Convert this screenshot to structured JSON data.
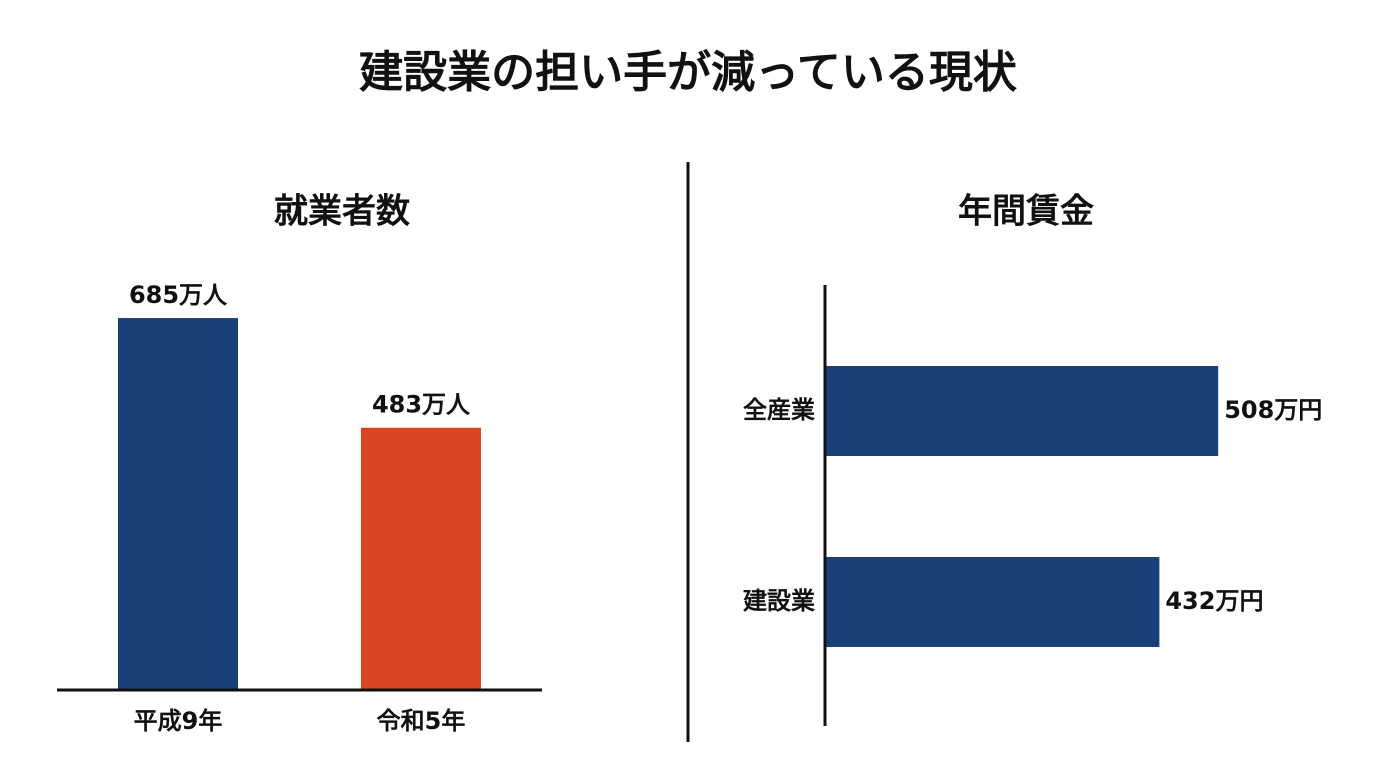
{
  "title": "建設業の担い手が減っている現状",
  "chart_data": [
    {
      "type": "bar",
      "title": "就業者数",
      "categories": [
        "平成9年",
        "令和5年"
      ],
      "values": [
        685,
        483
      ],
      "value_labels": [
        "685万人",
        "483万人"
      ],
      "colors": [
        "#1a4079",
        "#d84520"
      ]
    },
    {
      "type": "barh",
      "title": "年間賃金",
      "categories": [
        "全産業",
        "建設業"
      ],
      "values": [
        508,
        432
      ],
      "value_labels": [
        "508万円",
        "432万円"
      ],
      "color": "#1a4079"
    }
  ]
}
